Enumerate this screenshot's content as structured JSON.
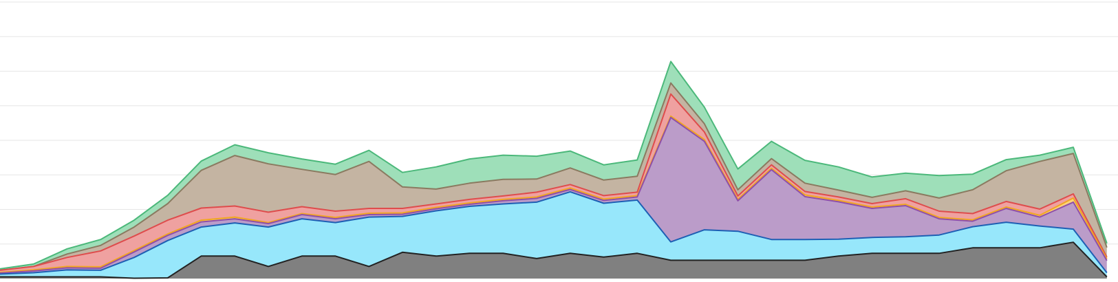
{
  "chart_data": {
    "type": "area",
    "stacked": true,
    "title": "",
    "xlabel": "",
    "ylabel": "",
    "grid": true,
    "legend": "none",
    "xlim": [
      0,
      100
    ],
    "ylim": [
      0,
      80
    ],
    "gridlines_y": [
      10,
      20,
      30,
      40,
      50,
      60,
      70,
      80
    ],
    "x": [
      0,
      3,
      6,
      9,
      12,
      15,
      18,
      21,
      24,
      27,
      30,
      33,
      36,
      39,
      42,
      45,
      48,
      51,
      54,
      57,
      60,
      63,
      66,
      69,
      72,
      75,
      78,
      81,
      84,
      87,
      90,
      93,
      96,
      99
    ],
    "layer_colors": {
      "gray": {
        "fill": "#808080",
        "stroke": "#222222"
      },
      "cyan": {
        "fill": "#97e7fb",
        "stroke": "#1e5fb4"
      },
      "purple": {
        "fill": "#bb9cc9",
        "stroke": "#8f4fa8"
      },
      "yellow": {
        "fill": "#fbd27a",
        "stroke": "#f0a622"
      },
      "red": {
        "fill": "#efa1a0",
        "stroke": "#de4c4c"
      },
      "tan": {
        "fill": "#c4b4a2",
        "stroke": "#8a7a60"
      },
      "green": {
        "fill": "#9edfb9",
        "stroke": "#4bb87a"
      }
    },
    "series": [
      {
        "key": "gray",
        "values": [
          0.5,
          0.5,
          0.5,
          0.5,
          0.1,
          0.2,
          6.5,
          6.5,
          3.5,
          6.5,
          6.5,
          3.5,
          7.6,
          6.5,
          7.3,
          7.3,
          5.8,
          7.3,
          6.2,
          7.3,
          5.3,
          5.3,
          5.3,
          5.3,
          5.3,
          6.5,
          7.3,
          7.3,
          7.3,
          8.9,
          8.9,
          8.9,
          10.5,
          0.5
        ]
      },
      {
        "key": "cyan",
        "values": [
          0.8,
          1.2,
          2.0,
          1.9,
          6.0,
          10.8,
          8.4,
          9.6,
          11.4,
          10.8,
          9.7,
          14.3,
          10.4,
          13.1,
          13.6,
          14.3,
          16.3,
          17.8,
          15.6,
          15.4,
          5.3,
          8.8,
          8.4,
          6.0,
          6.0,
          4.9,
          4.6,
          4.8,
          5.3,
          6.1,
          7.4,
          6.3,
          3.8,
          1.2
        ]
      },
      {
        "key": "purple",
        "values": [
          0.3,
          0.5,
          0.6,
          0.6,
          1.6,
          1.5,
          1.5,
          1.2,
          1.0,
          1.2,
          1.1,
          0.7,
          0.6,
          0.6,
          0.6,
          0.9,
          1.1,
          0.7,
          0.8,
          0.9,
          36.0,
          25.6,
          8.8,
          20.2,
          12.4,
          10.8,
          8.4,
          9.0,
          4.7,
          1.6,
          4.0,
          2.6,
          7.8,
          3.5
        ]
      },
      {
        "key": "yellow",
        "values": [
          0.2,
          0.3,
          0.4,
          0.4,
          0.4,
          0.4,
          0.5,
          0.5,
          0.3,
          0.3,
          0.4,
          0.4,
          0.4,
          0.4,
          0.4,
          0.4,
          0.4,
          0.4,
          0.4,
          0.4,
          0.4,
          0.5,
          0.4,
          0.4,
          0.5,
          0.4,
          0.4,
          0.4,
          0.4,
          0.4,
          0.4,
          0.5,
          1.2,
          0.5
        ]
      },
      {
        "key": "red",
        "values": [
          0.6,
          1.0,
          2.6,
          4.6,
          4.2,
          4.0,
          3.5,
          3.2,
          3.0,
          2.0,
          1.8,
          1.4,
          1.3,
          1.0,
          1.0,
          1.0,
          1.4,
          1.0,
          1.0,
          1.0,
          6.4,
          2.2,
          1.0,
          1.0,
          1.0,
          1.0,
          1.0,
          1.6,
          1.8,
          1.8,
          1.6,
          1.8,
          1.2,
          0.5
        ]
      },
      {
        "key": "tan",
        "values": [
          0.0,
          0.0,
          1.0,
          1.6,
          2.6,
          4.8,
          10.9,
          14.6,
          14.0,
          10.8,
          10.6,
          13.6,
          6.2,
          4.3,
          4.7,
          4.8,
          3.8,
          4.8,
          4.5,
          4.6,
          3.2,
          2.4,
          1.8,
          1.8,
          2.4,
          2.0,
          1.8,
          2.3,
          3.8,
          6.9,
          8.9,
          13.8,
          11.7,
          2.8
        ]
      },
      {
        "key": "green",
        "values": [
          0.4,
          0.7,
          1.5,
          1.7,
          2.0,
          2.4,
          2.7,
          3.1,
          3.2,
          3.0,
          3.0,
          3.2,
          4.2,
          6.4,
          7.0,
          7.0,
          6.6,
          4.9,
          4.4,
          4.7,
          6.2,
          4.8,
          6.0,
          5.0,
          6.6,
          6.7,
          5.9,
          5.1,
          6.5,
          4.5,
          3.2,
          1.8,
          1.8,
          1.2
        ]
      }
    ]
  }
}
